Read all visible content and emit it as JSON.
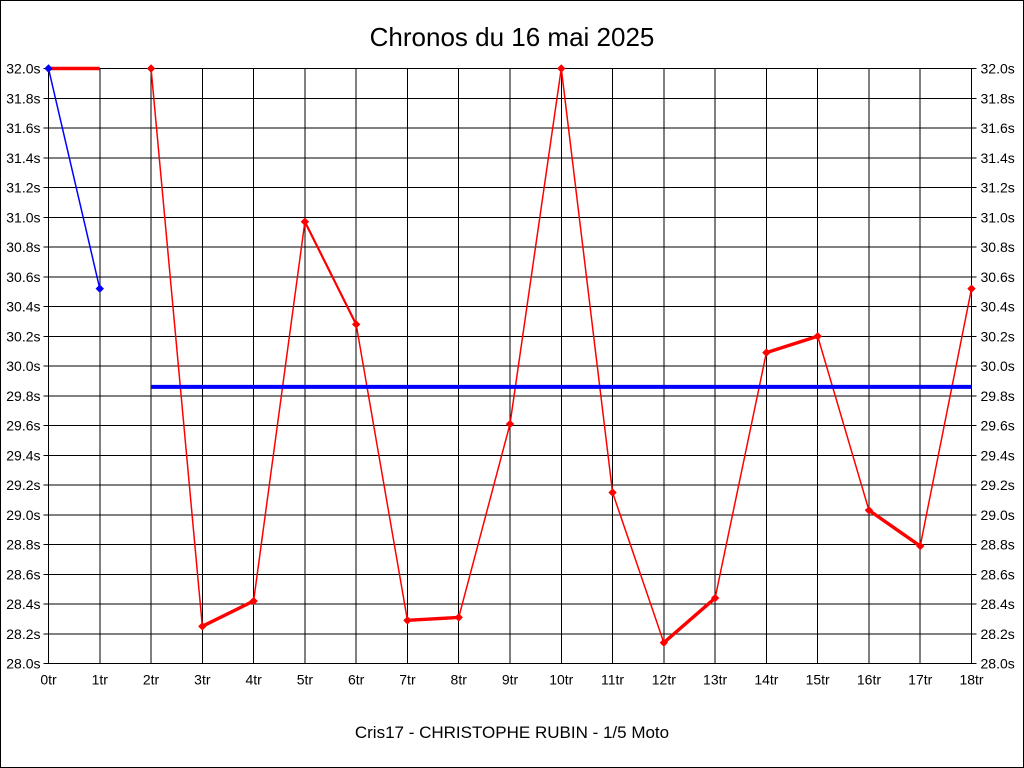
{
  "page": {
    "background": "#ffffff",
    "border_color": "#000000",
    "grid_color": "#000000"
  },
  "chart_data": {
    "type": "line",
    "title": "Chronos du 16 mai 2025",
    "footer": "Cris17 - CHRISTOPHE RUBIN - 1/5 Moto",
    "xlabel": "",
    "ylabel": "",
    "x_unit": "tr",
    "y_unit": "s",
    "xlim": [
      0,
      18
    ],
    "ylim": [
      28.0,
      32.0
    ],
    "y_step": 0.2,
    "grid": true,
    "legend": "none",
    "x_tick_labels": [
      "0tr",
      "1tr",
      "2tr",
      "3tr",
      "4tr",
      "5tr",
      "6tr",
      "7tr",
      "8tr",
      "9tr",
      "10tr",
      "11tr",
      "12tr",
      "13tr",
      "14tr",
      "15tr",
      "16tr",
      "17tr",
      "18tr"
    ],
    "y_tick_labels": [
      "32.0s",
      "31.8s",
      "31.6s",
      "31.4s",
      "31.2s",
      "31.0s",
      "30.8s",
      "30.6s",
      "30.4s",
      "30.2s",
      "30.0s",
      "29.8s",
      "29.6s",
      "29.4s",
      "29.2s",
      "29.0s",
      "28.8s",
      "28.6s",
      "28.4s",
      "28.2s",
      "28.0s"
    ],
    "series": [
      {
        "name": "chrono-tours-0-1",
        "color": "#ff0000",
        "markers": false,
        "x": [
          0,
          1
        ],
        "y": [
          32.0,
          32.0
        ]
      },
      {
        "name": "serie-bleue-tours-0-1",
        "color": "#0000ff",
        "markers": true,
        "x": [
          0,
          1
        ],
        "y": [
          32.0,
          30.52
        ]
      },
      {
        "name": "chrono-tours-2-18",
        "color": "#ff0000",
        "markers": true,
        "x": [
          2,
          3,
          4,
          5,
          6,
          7,
          8,
          9,
          10,
          11,
          12,
          13,
          14,
          15,
          16,
          17,
          18
        ],
        "y": [
          32.0,
          28.25,
          28.42,
          30.97,
          30.28,
          28.29,
          28.31,
          29.61,
          32.0,
          29.15,
          28.14,
          28.44,
          30.09,
          30.2,
          29.03,
          28.79,
          30.52
        ]
      },
      {
        "name": "moyenne",
        "color": "#0000ff",
        "markers": false,
        "width": 4,
        "x": [
          2,
          18
        ],
        "y": [
          29.86,
          29.86
        ]
      }
    ]
  }
}
